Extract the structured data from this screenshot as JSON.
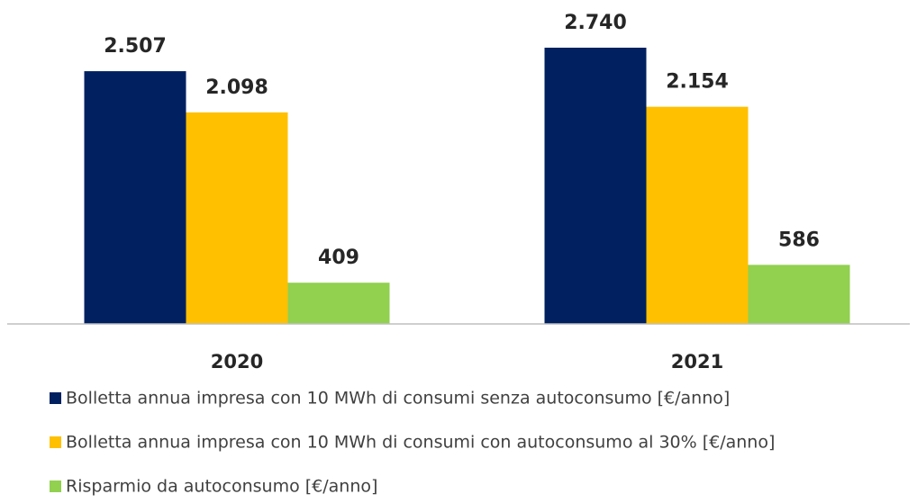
{
  "chart_data": {
    "type": "bar",
    "categories": [
      "2020",
      "2021"
    ],
    "series": [
      {
        "name": "Bolletta annua impresa con 10 MWh di consumi senza autoconsumo [€/anno]",
        "color": "#002060",
        "values": [
          2507,
          2740
        ],
        "value_labels": [
          "2.507",
          "2.740"
        ]
      },
      {
        "name": "Bolletta annua impresa con 10 MWh di consumi con autoconsumo al 30% [€/anno]",
        "color": "#ffc000",
        "values": [
          2098,
          2154
        ],
        "value_labels": [
          "2.098",
          "2.154"
        ]
      },
      {
        "name": "Risparmio da autoconsumo [€/anno]",
        "color": "#92d050",
        "values": [
          409,
          586
        ],
        "value_labels": [
          "409",
          "586"
        ]
      }
    ]
  }
}
